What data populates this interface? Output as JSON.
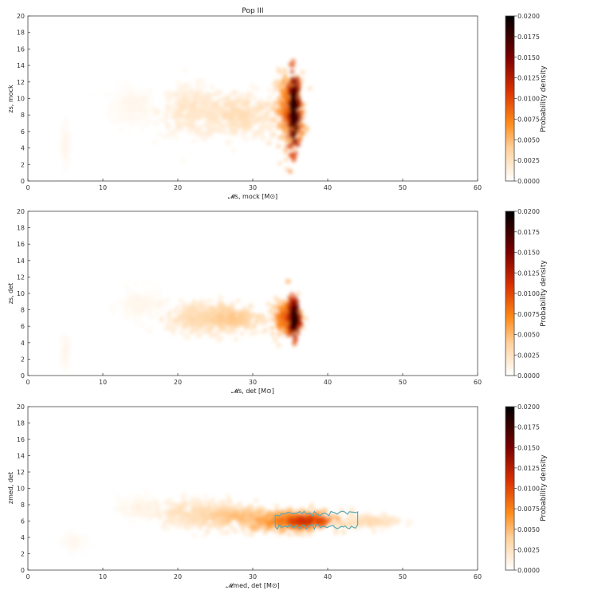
{
  "chart_data": [
    {
      "type": "heatmap",
      "title": "Pop III",
      "xlabel": "𝓜s, mock  [M⊙]",
      "ylabel": "zs, mock",
      "xlim": [
        0,
        60
      ],
      "ylim": [
        0,
        20
      ],
      "x_ticks": [
        0,
        10,
        20,
        30,
        40,
        50,
        60
      ],
      "y_ticks": [
        0,
        2,
        4,
        6,
        8,
        10,
        12,
        14,
        16,
        18,
        20
      ],
      "colorbar": {
        "label": "Probability density",
        "range": [
          0,
          0.02
        ],
        "ticks": [
          "0.0000",
          "0.0025",
          "0.0050",
          "0.0075",
          "0.0100",
          "0.0125",
          "0.0150",
          "0.0175",
          "0.0200"
        ]
      },
      "density_regions": [
        {
          "x_center": 35.5,
          "y_center": 8.5,
          "x_width": 0.8,
          "y_width": 5.0,
          "peak": 0.02
        },
        {
          "x_center": 35.0,
          "y_center": 8.5,
          "x_width": 2.0,
          "y_width": 4.5,
          "peak": 0.009
        },
        {
          "x_center": 28.0,
          "y_center": 8.0,
          "x_width": 6.0,
          "y_width": 3.0,
          "peak": 0.003
        },
        {
          "x_center": 22.0,
          "y_center": 8.5,
          "x_width": 4.5,
          "y_width": 3.0,
          "peak": 0.0025
        },
        {
          "x_center": 14.0,
          "y_center": 9.0,
          "x_width": 3.0,
          "y_width": 2.5,
          "peak": 0.0008
        },
        {
          "x_center": 5.0,
          "y_center": 4.5,
          "x_width": 0.5,
          "y_width": 2.5,
          "peak": 0.0008
        }
      ]
    },
    {
      "type": "heatmap",
      "title": "",
      "xlabel": "𝓜s, det  [M⊙]",
      "ylabel": "zs, det",
      "xlim": [
        0,
        60
      ],
      "ylim": [
        0,
        20
      ],
      "x_ticks": [
        0,
        10,
        20,
        30,
        40,
        50,
        60
      ],
      "y_ticks": [
        0,
        2,
        4,
        6,
        8,
        10,
        12,
        14,
        16,
        18,
        20
      ],
      "colorbar": {
        "label": "Probability density",
        "range": [
          0,
          0.02
        ],
        "ticks": [
          "0.0000",
          "0.0025",
          "0.0050",
          "0.0075",
          "0.0100",
          "0.0125",
          "0.0150",
          "0.0175",
          "0.0200"
        ]
      },
      "density_regions": [
        {
          "x_center": 35.5,
          "y_center": 7.0,
          "x_width": 0.8,
          "y_width": 2.5,
          "peak": 0.02
        },
        {
          "x_center": 34.5,
          "y_center": 7.0,
          "x_width": 2.0,
          "y_width": 2.2,
          "peak": 0.009
        },
        {
          "x_center": 27.0,
          "y_center": 7.0,
          "x_width": 5.0,
          "y_width": 2.0,
          "peak": 0.0045
        },
        {
          "x_center": 22.0,
          "y_center": 7.0,
          "x_width": 3.5,
          "y_width": 2.0,
          "peak": 0.0035
        },
        {
          "x_center": 15.0,
          "y_center": 8.5,
          "x_width": 3.0,
          "y_width": 2.0,
          "peak": 0.0008
        },
        {
          "x_center": 5.0,
          "y_center": 3.0,
          "x_width": 0.5,
          "y_width": 2.0,
          "peak": 0.0008
        }
      ]
    },
    {
      "type": "heatmap",
      "title": "",
      "xlabel": "𝓜med, det  [M⊙]",
      "ylabel": "zmed, det",
      "xlim": [
        0,
        60
      ],
      "ylim": [
        0,
        20
      ],
      "x_ticks": [
        0,
        10,
        20,
        30,
        40,
        50,
        60
      ],
      "y_ticks": [
        0,
        2,
        4,
        6,
        8,
        10,
        12,
        14,
        16,
        18,
        20
      ],
      "colorbar": {
        "label": "Probability density",
        "range": [
          0,
          0.02
        ],
        "ticks": [
          "0.0000",
          "0.0025",
          "0.0050",
          "0.0075",
          "0.0100",
          "0.0125",
          "0.0150",
          "0.0175",
          "0.0200"
        ]
      },
      "density_regions": [
        {
          "x_center": 37.0,
          "y_center": 6.0,
          "x_width": 4.0,
          "y_width": 0.9,
          "peak": 0.012
        },
        {
          "x_center": 35.0,
          "y_center": 6.0,
          "x_width": 7.0,
          "y_width": 1.4,
          "peak": 0.008
        },
        {
          "x_center": 28.0,
          "y_center": 6.5,
          "x_width": 6.0,
          "y_width": 1.5,
          "peak": 0.005
        },
        {
          "x_center": 22.0,
          "y_center": 7.0,
          "x_width": 5.0,
          "y_width": 1.8,
          "peak": 0.003
        },
        {
          "x_center": 46.0,
          "y_center": 6.0,
          "x_width": 4.0,
          "y_width": 0.8,
          "peak": 0.003
        },
        {
          "x_center": 15.0,
          "y_center": 7.5,
          "x_width": 3.0,
          "y_width": 1.5,
          "peak": 0.001
        },
        {
          "x_center": 6.0,
          "y_center": 3.5,
          "x_width": 1.5,
          "y_width": 1.2,
          "peak": 0.0006
        }
      ],
      "contour": {
        "x_range": [
          33,
          44
        ],
        "y_range": [
          5.0,
          7.2
        ],
        "color": "#5aaab5"
      }
    }
  ],
  "colormap": {
    "name": "gist_heat_r",
    "stops": [
      "#ffffff",
      "#ffc080",
      "#ff8000",
      "#cc2200",
      "#800000",
      "#000000"
    ]
  }
}
